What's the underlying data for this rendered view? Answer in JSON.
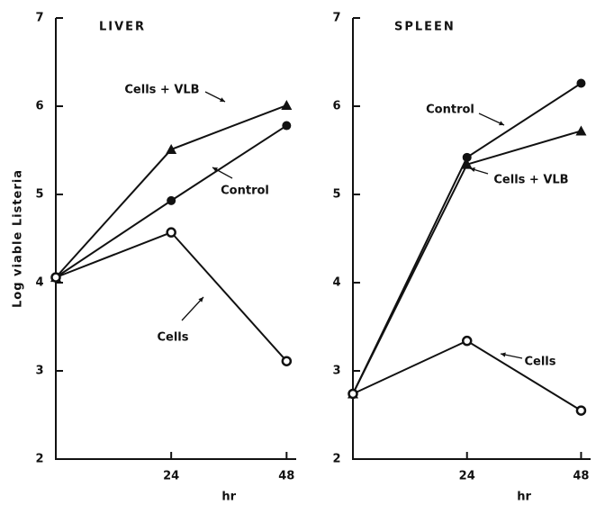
{
  "chart_data": [
    {
      "type": "line",
      "title": "LIVER",
      "xlabel": "hr",
      "ylabel": "Log viable Listeria",
      "x": [
        0,
        24,
        48
      ],
      "xlim": [
        0,
        50
      ],
      "xticks": [
        24,
        48
      ],
      "ylim": [
        2,
        7
      ],
      "yticks": [
        2,
        3,
        4,
        5,
        6,
        7
      ],
      "series": [
        {
          "name": "Cells + VLB",
          "color": "#111111",
          "marker": "filled-triangle",
          "values": [
            4.06,
            5.51,
            6.01
          ]
        },
        {
          "name": "Control",
          "color": "#111111",
          "marker": "filled-circle",
          "values": [
            4.06,
            4.93,
            5.78
          ]
        },
        {
          "name": "Cells",
          "color": "#111111",
          "marker": "open-circle",
          "values": [
            4.06,
            4.57,
            3.11
          ]
        }
      ]
    },
    {
      "type": "line",
      "title": "SPLEEN",
      "xlabel": "hr",
      "x": [
        0,
        24,
        48
      ],
      "xlim": [
        0,
        50
      ],
      "xticks": [
        24,
        48
      ],
      "ylim": [
        2,
        7
      ],
      "yticks": [
        2,
        3,
        4,
        5,
        6,
        7
      ],
      "series": [
        {
          "name": "Control",
          "color": "#111111",
          "marker": "filled-circle",
          "values": [
            2.74,
            5.42,
            6.26
          ]
        },
        {
          "name": "Cells + VLB",
          "color": "#111111",
          "marker": "filled-triangle",
          "values": [
            2.74,
            5.34,
            5.72
          ]
        },
        {
          "name": "Cells",
          "color": "#111111",
          "marker": "open-circle",
          "values": [
            2.74,
            3.34,
            2.55
          ]
        }
      ]
    }
  ]
}
